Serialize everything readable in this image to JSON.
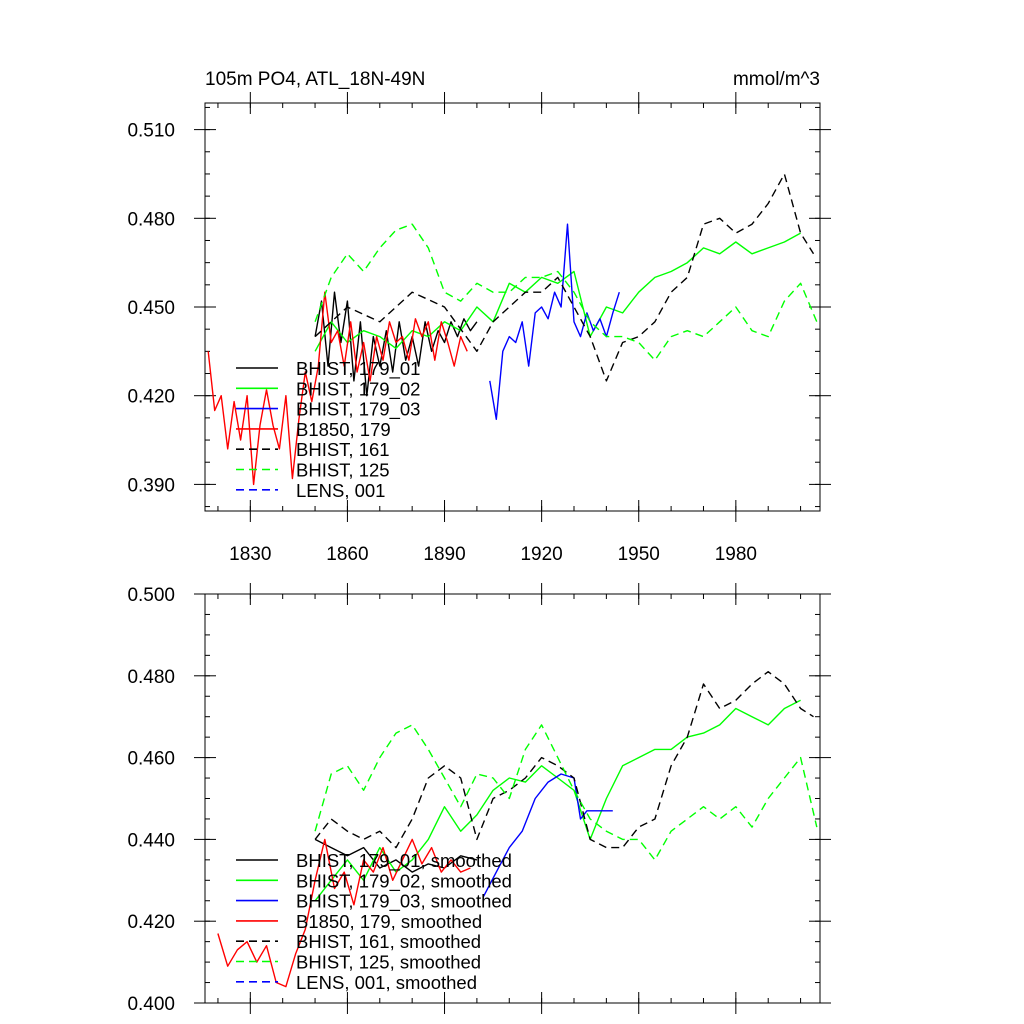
{
  "chart_data": [
    {
      "type": "line",
      "title": "105m PO4, ATL_18N-49N",
      "units": "mmol/m^3",
      "xlim": [
        1816,
        2006
      ],
      "ylim": [
        0.381,
        0.519
      ],
      "xticks": [
        1830,
        1860,
        1890,
        1920,
        1950,
        1980
      ],
      "xtick_labels": [
        "1830",
        "1860",
        "1890",
        "1920",
        "1950",
        "1980"
      ],
      "yticks": [
        0.39,
        0.42,
        0.45,
        0.48,
        0.51
      ],
      "ytick_labels": [
        "0.390",
        "0.420",
        "0.450",
        "0.480",
        "0.510"
      ],
      "legend_position": "bottom-left",
      "series": [
        {
          "name": "BHIST, 179_01",
          "color": "#000000",
          "dashed": false,
          "x": [
            1850,
            1852,
            1854,
            1856,
            1858,
            1860,
            1862,
            1864,
            1866,
            1868,
            1870,
            1872,
            1874,
            1876,
            1878,
            1880,
            1882,
            1884,
            1886,
            1888,
            1890,
            1892,
            1894,
            1896,
            1898,
            1900
          ],
          "y": [
            0.44,
            0.452,
            0.43,
            0.455,
            0.438,
            0.452,
            0.425,
            0.445,
            0.42,
            0.44,
            0.43,
            0.442,
            0.428,
            0.445,
            0.432,
            0.44,
            0.43,
            0.445,
            0.435,
            0.442,
            0.438,
            0.445,
            0.44,
            0.446,
            0.442,
            0.445
          ]
        },
        {
          "name": "BHIST, 179_02",
          "color": "#00ff00",
          "dashed": false,
          "x": [
            1850,
            1855,
            1860,
            1865,
            1870,
            1875,
            1880,
            1885,
            1890,
            1895,
            1900,
            1905,
            1910,
            1915,
            1920,
            1925,
            1930,
            1935,
            1940,
            1945,
            1950,
            1955,
            1960,
            1965,
            1970,
            1975,
            1980,
            1985,
            1990,
            1995,
            2000
          ],
          "y": [
            0.435,
            0.445,
            0.438,
            0.442,
            0.44,
            0.436,
            0.442,
            0.44,
            0.445,
            0.442,
            0.45,
            0.445,
            0.458,
            0.455,
            0.46,
            0.458,
            0.462,
            0.44,
            0.45,
            0.448,
            0.455,
            0.46,
            0.462,
            0.465,
            0.47,
            0.468,
            0.472,
            0.468,
            0.47,
            0.472,
            0.475
          ]
        },
        {
          "name": "BHIST, 179_03",
          "color": "#0000ff",
          "dashed": false,
          "x": [
            1904,
            1906,
            1908,
            1910,
            1912,
            1914,
            1916,
            1918,
            1920,
            1922,
            1924,
            1926,
            1928,
            1930,
            1932,
            1934,
            1936,
            1938,
            1940,
            1942,
            1944
          ],
          "y": [
            0.425,
            0.412,
            0.435,
            0.44,
            0.438,
            0.445,
            0.43,
            0.448,
            0.45,
            0.446,
            0.455,
            0.45,
            0.478,
            0.445,
            0.44,
            0.448,
            0.442,
            0.446,
            0.44,
            0.448,
            0.455
          ]
        },
        {
          "name": "B1850, 179",
          "color": "#ff0000",
          "dashed": false,
          "x": [
            1817,
            1819,
            1821,
            1823,
            1825,
            1827,
            1829,
            1831,
            1833,
            1835,
            1837,
            1839,
            1841,
            1843,
            1845,
            1847,
            1849,
            1851,
            1853,
            1855,
            1857,
            1859,
            1861,
            1863,
            1865,
            1867,
            1869,
            1871,
            1873,
            1875,
            1877,
            1879,
            1881,
            1883,
            1885,
            1887,
            1889,
            1891,
            1893,
            1895,
            1897
          ],
          "y": [
            0.435,
            0.415,
            0.42,
            0.402,
            0.418,
            0.405,
            0.42,
            0.39,
            0.41,
            0.422,
            0.41,
            0.402,
            0.42,
            0.392,
            0.412,
            0.428,
            0.418,
            0.43,
            0.455,
            0.438,
            0.442,
            0.43,
            0.445,
            0.428,
            0.438,
            0.425,
            0.44,
            0.432,
            0.445,
            0.438,
            0.44,
            0.432,
            0.446,
            0.44,
            0.445,
            0.432,
            0.445,
            0.438,
            0.43,
            0.44,
            0.435
          ]
        },
        {
          "name": "BHIST, 161",
          "color": "#000000",
          "dashed": true,
          "x": [
            1850,
            1860,
            1870,
            1880,
            1890,
            1900,
            1905,
            1910,
            1915,
            1920,
            1925,
            1930,
            1935,
            1940,
            1945,
            1950,
            1955,
            1960,
            1965,
            1970,
            1975,
            1980,
            1985,
            1990,
            1995,
            2000,
            2004
          ],
          "y": [
            0.44,
            0.45,
            0.445,
            0.455,
            0.45,
            0.435,
            0.445,
            0.45,
            0.455,
            0.455,
            0.46,
            0.45,
            0.44,
            0.425,
            0.438,
            0.44,
            0.445,
            0.455,
            0.46,
            0.478,
            0.48,
            0.475,
            0.478,
            0.485,
            0.495,
            0.475,
            0.468
          ]
        },
        {
          "name": "BHIST, 125",
          "color": "#00ff00",
          "dashed": true,
          "x": [
            1850,
            1855,
            1860,
            1865,
            1870,
            1875,
            1880,
            1885,
            1890,
            1895,
            1900,
            1905,
            1910,
            1915,
            1920,
            1925,
            1930,
            1935,
            1940,
            1945,
            1950,
            1955,
            1960,
            1965,
            1970,
            1975,
            1980,
            1985,
            1990,
            1995,
            2000,
            2005
          ],
          "y": [
            0.445,
            0.46,
            0.468,
            0.462,
            0.47,
            0.476,
            0.478,
            0.47,
            0.455,
            0.452,
            0.458,
            0.455,
            0.455,
            0.46,
            0.46,
            0.462,
            0.455,
            0.445,
            0.44,
            0.44,
            0.438,
            0.432,
            0.44,
            0.442,
            0.44,
            0.445,
            0.45,
            0.442,
            0.44,
            0.452,
            0.458,
            0.445
          ]
        },
        {
          "name": "LENS, 001",
          "color": "#0000ff",
          "dashed": true,
          "x": [],
          "y": []
        }
      ]
    },
    {
      "type": "line",
      "title": "",
      "xlim": [
        1816,
        2006
      ],
      "ylim": [
        0.4,
        0.5
      ],
      "xticks": [
        1830,
        1860,
        1890,
        1920,
        1950,
        1980
      ],
      "xtick_labels": [],
      "yticks": [
        0.4,
        0.42,
        0.44,
        0.46,
        0.48,
        0.5
      ],
      "ytick_labels": [
        "0.400",
        "0.420",
        "0.440",
        "0.460",
        "0.480",
        "0.500"
      ],
      "legend_position": "bottom-left",
      "series": [
        {
          "name": "BHIST, 179_01, smoothed",
          "color": "#000000",
          "dashed": false,
          "x": [
            1850,
            1855,
            1860,
            1865,
            1870,
            1875,
            1880,
            1885,
            1890,
            1895,
            1900
          ],
          "y": [
            0.44,
            0.438,
            0.436,
            0.438,
            0.433,
            0.435,
            0.432,
            0.434,
            0.433,
            0.436,
            0.435
          ]
        },
        {
          "name": "BHIST, 179_02, smoothed",
          "color": "#00ff00",
          "dashed": false,
          "x": [
            1850,
            1855,
            1860,
            1865,
            1870,
            1875,
            1880,
            1885,
            1890,
            1895,
            1900,
            1905,
            1910,
            1915,
            1920,
            1925,
            1930,
            1935,
            1940,
            1945,
            1950,
            1955,
            1960,
            1965,
            1970,
            1975,
            1980,
            1985,
            1990,
            1995,
            2000
          ],
          "y": [
            0.425,
            0.43,
            0.435,
            0.43,
            0.438,
            0.432,
            0.435,
            0.44,
            0.448,
            0.442,
            0.446,
            0.452,
            0.455,
            0.454,
            0.458,
            0.455,
            0.452,
            0.44,
            0.45,
            0.458,
            0.46,
            0.462,
            0.462,
            0.465,
            0.466,
            0.468,
            0.472,
            0.47,
            0.468,
            0.472,
            0.474
          ]
        },
        {
          "name": "BHIST, 179_03, smoothed",
          "color": "#0000ff",
          "dashed": false,
          "x": [
            1902,
            1906,
            1910,
            1914,
            1918,
            1922,
            1926,
            1930,
            1932,
            1934,
            1938,
            1942
          ],
          "y": [
            0.426,
            0.432,
            0.438,
            0.442,
            0.45,
            0.454,
            0.456,
            0.455,
            0.445,
            0.447,
            0.447,
            0.447
          ]
        },
        {
          "name": "B1850, 179, smoothed",
          "color": "#ff0000",
          "dashed": false,
          "x": [
            1820,
            1823,
            1826,
            1829,
            1832,
            1835,
            1838,
            1841,
            1844,
            1847,
            1850,
            1853,
            1856,
            1859,
            1862,
            1865,
            1868,
            1871,
            1874,
            1877,
            1880,
            1883,
            1886,
            1889,
            1892,
            1895,
            1898
          ],
          "y": [
            0.417,
            0.409,
            0.413,
            0.415,
            0.41,
            0.414,
            0.405,
            0.404,
            0.412,
            0.418,
            0.43,
            0.44,
            0.428,
            0.432,
            0.424,
            0.435,
            0.432,
            0.438,
            0.43,
            0.435,
            0.44,
            0.434,
            0.438,
            0.432,
            0.435,
            0.432,
            0.433
          ]
        },
        {
          "name": "BHIST, 161, smoothed",
          "color": "#000000",
          "dashed": true,
          "x": [
            1850,
            1855,
            1860,
            1865,
            1870,
            1875,
            1880,
            1885,
            1890,
            1895,
            1900,
            1905,
            1910,
            1915,
            1920,
            1925,
            1930,
            1935,
            1940,
            1945,
            1950,
            1955,
            1960,
            1965,
            1970,
            1975,
            1980,
            1985,
            1990,
            1995,
            2000,
            2004
          ],
          "y": [
            0.44,
            0.445,
            0.442,
            0.44,
            0.442,
            0.438,
            0.445,
            0.455,
            0.458,
            0.455,
            0.44,
            0.45,
            0.452,
            0.455,
            0.46,
            0.458,
            0.455,
            0.44,
            0.438,
            0.438,
            0.443,
            0.445,
            0.458,
            0.465,
            0.478,
            0.472,
            0.474,
            0.478,
            0.481,
            0.478,
            0.472,
            0.47
          ]
        },
        {
          "name": "BHIST, 125, smoothed",
          "color": "#00ff00",
          "dashed": true,
          "x": [
            1850,
            1855,
            1860,
            1865,
            1870,
            1875,
            1880,
            1885,
            1890,
            1895,
            1900,
            1905,
            1910,
            1915,
            1920,
            1925,
            1930,
            1935,
            1940,
            1945,
            1950,
            1955,
            1960,
            1965,
            1970,
            1975,
            1980,
            1985,
            1990,
            1995,
            2000,
            2005
          ],
          "y": [
            0.442,
            0.456,
            0.458,
            0.452,
            0.46,
            0.466,
            0.468,
            0.462,
            0.455,
            0.448,
            0.456,
            0.455,
            0.45,
            0.462,
            0.468,
            0.46,
            0.452,
            0.445,
            0.442,
            0.44,
            0.44,
            0.435,
            0.442,
            0.445,
            0.448,
            0.445,
            0.448,
            0.443,
            0.45,
            0.455,
            0.46,
            0.443
          ]
        },
        {
          "name": "LENS, 001, smoothed",
          "color": "#0000ff",
          "dashed": true,
          "x": [],
          "y": []
        }
      ]
    }
  ]
}
